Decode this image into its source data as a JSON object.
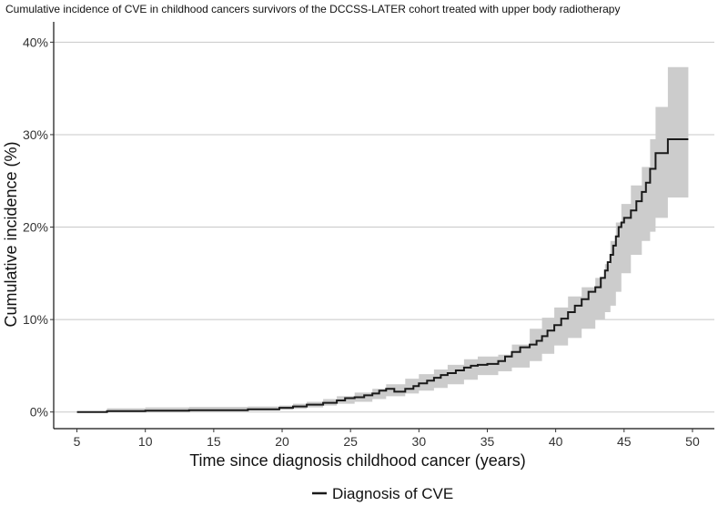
{
  "chart_data": {
    "type": "line",
    "title": "Cumulative incidence of CVE in childhood cancers survivors of the DCCSS-LATER cohort treated with upper body radiotherapy",
    "xlabel": "Time since diagnosis childhood cancer (years)",
    "ylabel": "Cumulative incidence (%)",
    "xlim": [
      3.3,
      51.6
    ],
    "ylim": [
      -1.8,
      42.2
    ],
    "x_ticks": [
      5,
      10,
      15,
      20,
      25,
      30,
      35,
      40,
      45,
      50
    ],
    "x_tick_labels": [
      "5",
      "10",
      "15",
      "20",
      "25",
      "30",
      "35",
      "40",
      "45",
      "50"
    ],
    "y_ticks": [
      0,
      10,
      20,
      30,
      40
    ],
    "y_tick_labels": [
      "0%",
      "10%",
      "20%",
      "30%",
      "40%"
    ],
    "grid": "horizontal major",
    "legend_position": "bottom",
    "step": true,
    "series": [
      {
        "name": "Diagnosis of CVE",
        "color": "#1a1a1a",
        "x": [
          5,
          7.2,
          10,
          13.2,
          17.5,
          19.8,
          20.8,
          21.8,
          23.0,
          24.0,
          24.6,
          25.3,
          26.0,
          26.6,
          27.1,
          27.6,
          28.2,
          29.0,
          29.6,
          30.0,
          30.6,
          31.1,
          31.6,
          32.1,
          32.7,
          33.3,
          33.8,
          34.3,
          35.0,
          35.8,
          36.3,
          36.8,
          37.4,
          38.1,
          38.6,
          39.0,
          39.4,
          39.9,
          40.4,
          40.9,
          41.4,
          41.9,
          42.4,
          42.9,
          43.3,
          43.6,
          43.8,
          44.0,
          44.2,
          44.4,
          44.6,
          44.8,
          45.0,
          45.5,
          45.9,
          46.3,
          46.6,
          46.9,
          47.3,
          48.2,
          49.7
        ],
        "y": [
          0,
          0.1,
          0.15,
          0.2,
          0.3,
          0.45,
          0.6,
          0.8,
          1.0,
          1.25,
          1.5,
          1.6,
          1.8,
          2.0,
          2.3,
          2.5,
          2.2,
          2.5,
          2.8,
          3.1,
          3.4,
          3.7,
          4.0,
          4.2,
          4.5,
          4.8,
          5.0,
          5.1,
          5.2,
          5.5,
          6.0,
          6.5,
          7.0,
          7.3,
          7.7,
          8.2,
          8.8,
          9.4,
          10.1,
          10.8,
          11.5,
          12.2,
          13.0,
          13.5,
          14.5,
          15.3,
          16.2,
          17.0,
          18.0,
          19.0,
          20.0,
          20.5,
          21.0,
          21.8,
          22.8,
          23.8,
          24.8,
          26.3,
          28.0,
          29.5,
          29.5
        ]
      }
    ],
    "confidence_band": {
      "color": "#cccccc",
      "x": [
        5,
        7.2,
        10,
        13.2,
        17.5,
        19.8,
        20.8,
        21.8,
        23.0,
        24.0,
        25.3,
        26.6,
        27.6,
        29.0,
        30.0,
        31.1,
        32.1,
        33.3,
        34.3,
        35.8,
        36.8,
        38.1,
        39.0,
        39.9,
        40.9,
        41.9,
        42.9,
        43.6,
        44.0,
        44.4,
        44.8,
        45.5,
        46.3,
        46.9,
        47.3,
        48.2,
        49.7
      ],
      "lower": [
        0,
        0,
        0.05,
        0.1,
        0.15,
        0.25,
        0.35,
        0.5,
        0.7,
        0.9,
        1.1,
        1.4,
        1.7,
        2.0,
        2.3,
        2.6,
        3.0,
        3.5,
        4.0,
        4.4,
        4.8,
        5.5,
        6.3,
        7.2,
        8.0,
        9.0,
        10.0,
        10.8,
        11.5,
        13.0,
        15.0,
        17.0,
        18.5,
        19.5,
        21.0,
        23.2,
        23.2
      ],
      "upper": [
        0,
        0.4,
        0.5,
        0.55,
        0.6,
        0.7,
        0.9,
        1.1,
        1.4,
        1.7,
        2.1,
        2.5,
        3.0,
        3.6,
        4.1,
        4.6,
        5.1,
        5.7,
        6.0,
        6.2,
        7.3,
        9.0,
        10.2,
        11.3,
        12.5,
        13.5,
        14.5,
        16.0,
        18.5,
        20.5,
        22.5,
        24.5,
        26.5,
        29.5,
        33.0,
        37.3,
        37.3
      ]
    }
  }
}
